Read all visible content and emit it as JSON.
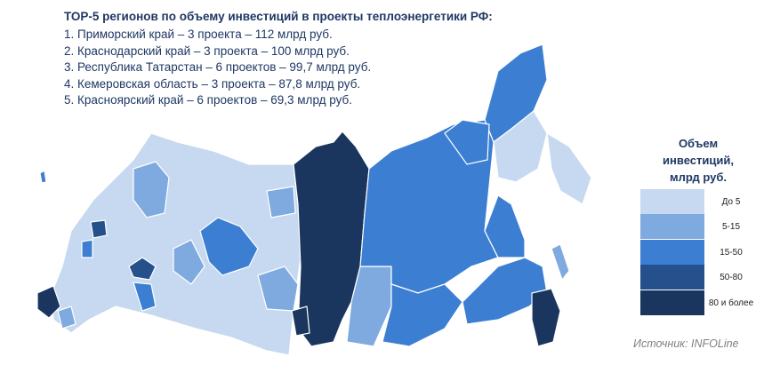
{
  "title": "ТОР-5 регионов по объему инвестиций в проекты теплоэнергетики РФ:",
  "top_regions": [
    "1. Приморский край – 3 проекта – 112 млрд руб.",
    "2. Краснодарский край – 3 проекта – 100 млрд руб.",
    "3. Республика Татарстан – 6 проектов – 99,7 млрд руб.",
    "4. Кемеровская область – 3 проекта – 87,8 млрд руб.",
    "5. Красноярский край – 6 проектов – 69,3 млрд руб."
  ],
  "legend": {
    "title": [
      "Объем",
      "инвестиций,",
      "млрд руб."
    ],
    "items": [
      {
        "label": "До 5",
        "color": "#c6d9f0"
      },
      {
        "label": "5-15",
        "color": "#7faadf"
      },
      {
        "label": "15-50",
        "color": "#3c7fd2"
      },
      {
        "label": "50-80",
        "color": "#25508c"
      },
      {
        "label": "80 и более",
        "color": "#1a365f"
      }
    ]
  },
  "source": "Источник: INFOLine"
}
